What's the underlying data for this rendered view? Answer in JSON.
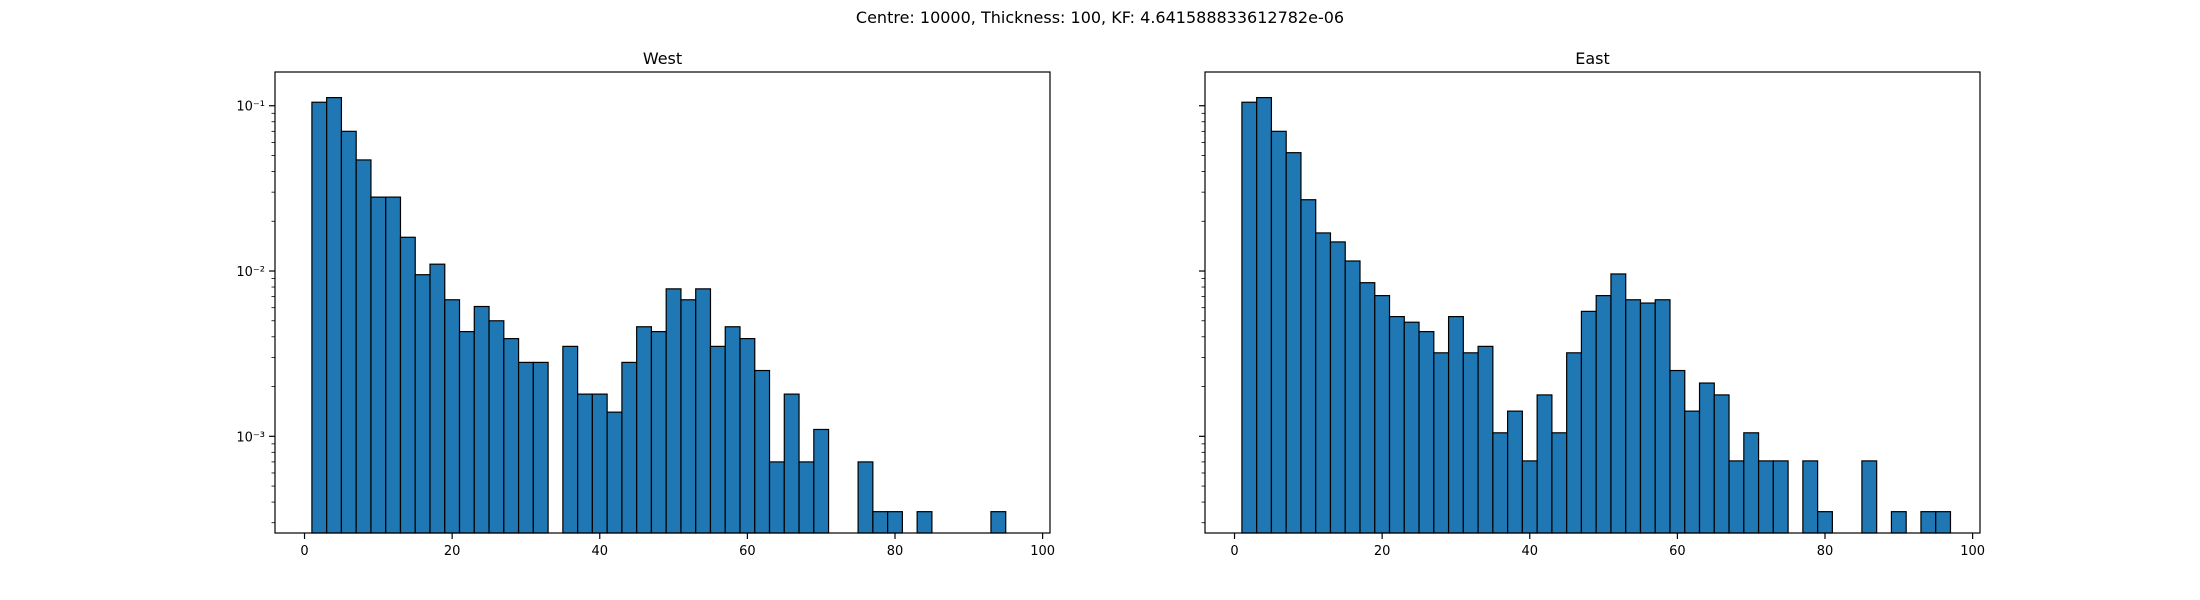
{
  "figure": {
    "suptitle": "Centre: 10000, Thickness: 100, KF: 4.641588833612782e-06"
  },
  "style": {
    "bar_color": "#1f77b4",
    "edge_color": "#000000"
  },
  "chart_data": [
    {
      "type": "bar",
      "title": "West",
      "xlabel": "",
      "ylabel": "",
      "yscale": "log",
      "xlim": [
        -4,
        101
      ],
      "ylim": [
        0.00026,
        0.16
      ],
      "xticks": [
        0,
        20,
        40,
        60,
        80,
        100
      ],
      "xtick_labels": [
        "0",
        "20",
        "40",
        "60",
        "80",
        "100"
      ],
      "yticks": [
        0.001,
        0.01,
        0.1
      ],
      "ytick_labels": [
        "10⁻³",
        "10⁻²",
        "10⁻¹"
      ],
      "bin_width": 2,
      "bin_starts": [
        1,
        3,
        5,
        7,
        9,
        11,
        13,
        15,
        17,
        19,
        21,
        23,
        25,
        27,
        29,
        31,
        33,
        35,
        37,
        39,
        41,
        43,
        45,
        47,
        49,
        51,
        53,
        55,
        57,
        59,
        61,
        63,
        65,
        67,
        69,
        71,
        73,
        75,
        77,
        79,
        81,
        83,
        85,
        87,
        89,
        91,
        93
      ],
      "values": [
        0.105,
        0.112,
        0.07,
        0.047,
        0.028,
        0.028,
        0.016,
        0.0095,
        0.011,
        0.0067,
        0.0043,
        0.0061,
        0.005,
        0.0039,
        0.0028,
        0.0028,
        0,
        0.0035,
        0.0018,
        0.0018,
        0.0014,
        0.0028,
        0.0046,
        0.0043,
        0.0078,
        0.0067,
        0.0078,
        0.0035,
        0.0046,
        0.0039,
        0.0025,
        0.0007,
        0.0018,
        0.0007,
        0.0011,
        0,
        0,
        0.0007,
        0.00035,
        0.00035,
        0,
        0.00035,
        0,
        0,
        0,
        0,
        0.00035
      ],
      "grid": false,
      "legend": "none"
    },
    {
      "type": "bar",
      "title": "East",
      "xlabel": "",
      "ylabel": "",
      "yscale": "log",
      "xlim": [
        -4,
        101
      ],
      "ylim": [
        0.00026,
        0.16
      ],
      "xticks": [
        0,
        20,
        40,
        60,
        80,
        100
      ],
      "xtick_labels": [
        "0",
        "20",
        "40",
        "60",
        "80",
        "100"
      ],
      "yticks": [
        0.001,
        0.01,
        0.1
      ],
      "ytick_labels": [],
      "bin_width": 2,
      "bin_starts": [
        1,
        3,
        5,
        7,
        9,
        11,
        13,
        15,
        17,
        19,
        21,
        23,
        25,
        27,
        29,
        31,
        33,
        35,
        37,
        39,
        41,
        43,
        45,
        47,
        49,
        51,
        53,
        55,
        57,
        59,
        61,
        63,
        65,
        67,
        69,
        71,
        73,
        75,
        77,
        79,
        81,
        83,
        85,
        87,
        89,
        91,
        93,
        95
      ],
      "values": [
        0.105,
        0.112,
        0.07,
        0.052,
        0.027,
        0.017,
        0.015,
        0.0115,
        0.0085,
        0.0071,
        0.0053,
        0.0049,
        0.0043,
        0.0032,
        0.0053,
        0.0032,
        0.0035,
        0.00105,
        0.00142,
        0.00071,
        0.00178,
        0.00105,
        0.0032,
        0.0057,
        0.0071,
        0.0096,
        0.0067,
        0.0064,
        0.0067,
        0.0025,
        0.00142,
        0.0021,
        0.00178,
        0.00071,
        0.00105,
        0.00071,
        0.00071,
        0,
        0.00071,
        0.00035,
        0,
        0,
        0.00071,
        0,
        0.00035,
        0,
        0.00035,
        0.00035
      ],
      "grid": false,
      "legend": "none"
    }
  ]
}
